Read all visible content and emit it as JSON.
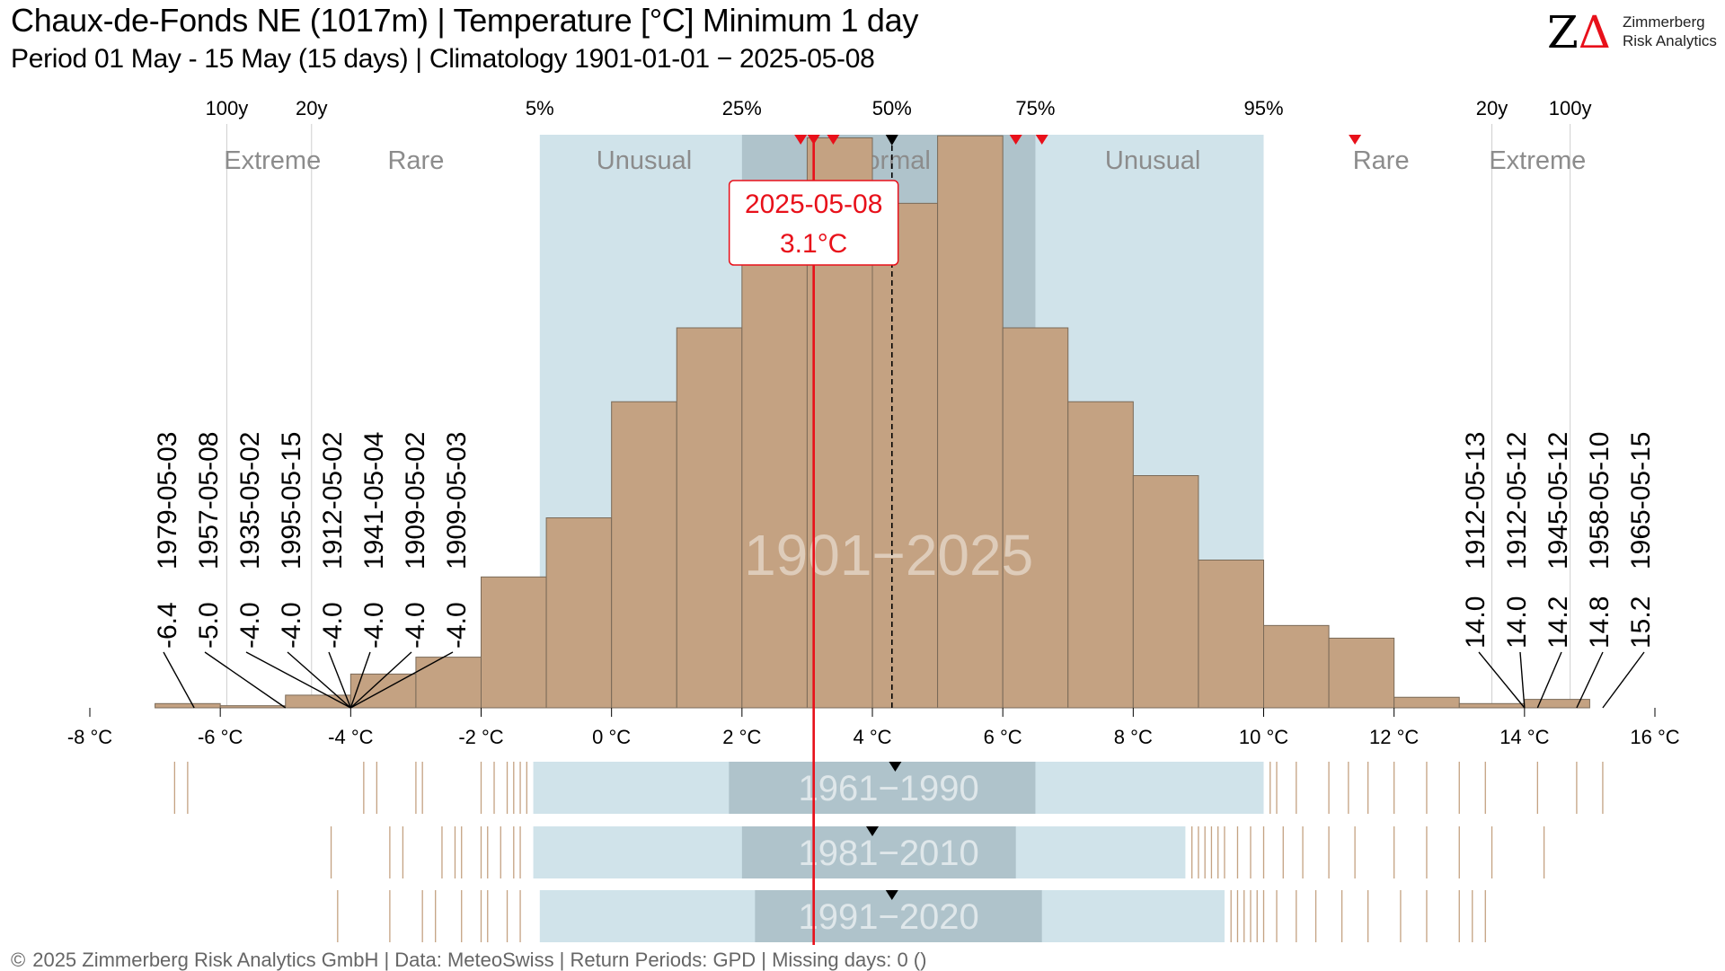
{
  "header": {
    "title": "Chaux-de-Fonds  NE (1017m) | Temperature [°C] Minimum 1 day",
    "subtitle": "Period 01 May - 15 May (15 days) | Climatology 1901-01-01 − 2025-05-08"
  },
  "logo": {
    "mark": "Z",
    "delta": "Δ",
    "line1": "Zimmerberg",
    "line2": "Risk Analytics"
  },
  "footer": {
    "copyright": "©",
    "text": "2025 Zimmerberg Risk Analytics GmbH | Data: MeteoSwiss | Return Periods: GPD | Missing days: 0 ()"
  },
  "colors": {
    "bars": "#c4a282",
    "bar_edge": "#7a6a58",
    "band_unusual": "#d0e3ea",
    "band_normal": "#afc3cb",
    "current": "#e8101a",
    "median": "#000000",
    "rug": "#c4a282"
  },
  "chart_data": {
    "type": "bar",
    "xlabel": "",
    "ylabel": "",
    "xlim": [
      -8,
      16
    ],
    "x_ticks": [
      -8,
      -6,
      -4,
      -2,
      0,
      2,
      4,
      6,
      8,
      10,
      12,
      14,
      16
    ],
    "x_tick_labels": [
      "-8 °C",
      "-6 °C",
      "-4 °C",
      "-2 °C",
      "0 °C",
      "2 °C",
      "4 °C",
      "6 °C",
      "8 °C",
      "10 °C",
      "12 °C",
      "14 °C",
      "16 °C"
    ],
    "bin_edges": [
      -7,
      -6,
      -5,
      -4,
      -3,
      -2,
      -1,
      0,
      1,
      2,
      3,
      4,
      5,
      6,
      7,
      8,
      9,
      10,
      11,
      12,
      13,
      14,
      15
    ],
    "counts": [
      2,
      1,
      6,
      16,
      24,
      62,
      90,
      145,
      180,
      227,
      270,
      239,
      271,
      180,
      145,
      110,
      70,
      39,
      33,
      5,
      2,
      4
    ],
    "percentiles": [
      {
        "label": "5%",
        "value": -1.1
      },
      {
        "label": "25%",
        "value": 2.0
      },
      {
        "label": "50%",
        "value": 4.3
      },
      {
        "label": "75%",
        "value": 6.5
      },
      {
        "label": "95%",
        "value": 10.0
      }
    ],
    "return_periods": [
      {
        "label": "100y",
        "value": -5.9
      },
      {
        "label": "20y",
        "value": -4.6
      },
      {
        "label": "20y",
        "value": 13.5
      },
      {
        "label": "100y",
        "value": 14.7
      }
    ],
    "zones": [
      {
        "label": "Extreme",
        "value": -5.2
      },
      {
        "label": "Rare",
        "value": -3.0
      },
      {
        "label": "Unusual",
        "value": 0.5
      },
      {
        "label": "Normal",
        "value": 4.25
      },
      {
        "label": "Unusual",
        "value": 8.3
      },
      {
        "label": "Rare",
        "value": 11.8
      },
      {
        "label": "Extreme",
        "value": 14.2
      }
    ],
    "current": {
      "date": "2025-05-08",
      "value": 3.1,
      "label": "3.1°C"
    },
    "recent_markers": [
      2.9,
      3.1,
      3.4,
      6.2,
      6.6,
      11.4
    ],
    "median": 4.3,
    "period_label": "1901−2025",
    "lowest": [
      {
        "date": "1979-05-03",
        "value": -6.4,
        "label": "-6.4"
      },
      {
        "date": "1957-05-08",
        "value": -5.0,
        "label": "-5.0"
      },
      {
        "date": "1935-05-02",
        "value": -4.0,
        "label": "-4.0"
      },
      {
        "date": "1995-05-15",
        "value": -4.0,
        "label": "-4.0"
      },
      {
        "date": "1912-05-02",
        "value": -4.0,
        "label": "-4.0"
      },
      {
        "date": "1941-05-04",
        "value": -4.0,
        "label": "-4.0"
      },
      {
        "date": "1909-05-02",
        "value": -4.0,
        "label": "-4.0"
      },
      {
        "date": "1909-05-03",
        "value": -4.0,
        "label": "-4.0"
      }
    ],
    "highest": [
      {
        "date": "1912-05-13",
        "value": 14.0,
        "label": "14.0"
      },
      {
        "date": "1912-05-12",
        "value": 14.0,
        "label": "14.0"
      },
      {
        "date": "1945-05-12",
        "value": 14.2,
        "label": "14.2"
      },
      {
        "date": "1958-05-10",
        "value": 14.8,
        "label": "14.8"
      },
      {
        "date": "1965-05-15",
        "value": 15.2,
        "label": "15.2"
      }
    ],
    "climatologies": [
      {
        "label": "1961−1990",
        "p5": -1.2,
        "p25": 1.8,
        "median": 4.35,
        "p75": 6.5,
        "p95": 10.0,
        "rug": [
          -6.7,
          -6.5,
          -3.8,
          -3.6,
          -3.0,
          -2.9,
          -2.0,
          -1.8,
          -1.6,
          -1.5,
          -1.4,
          -1.3,
          10.1,
          10.2,
          10.5,
          11.0,
          11.3,
          11.6,
          12.0,
          12.5,
          13.0,
          13.4,
          14.2,
          14.8,
          15.2
        ]
      },
      {
        "label": "1981−2010",
        "p5": -1.2,
        "p25": 2.0,
        "median": 4.0,
        "p75": 6.2,
        "p95": 8.8,
        "rug": [
          -4.3,
          -3.4,
          -3.2,
          -2.6,
          -2.4,
          -2.3,
          -2.0,
          -1.9,
          -1.7,
          -1.5,
          -1.4,
          8.9,
          9.0,
          9.1,
          9.2,
          9.3,
          9.4,
          9.6,
          9.8,
          10.0,
          10.3,
          10.6,
          11.0,
          11.4,
          12.0,
          12.5,
          13.0,
          13.5,
          14.3
        ]
      },
      {
        "label": "1991−2020",
        "p5": -1.1,
        "p25": 2.2,
        "median": 4.3,
        "p75": 6.6,
        "p95": 9.4,
        "rug": [
          -4.2,
          -3.4,
          -2.9,
          -2.7,
          -2.3,
          -2.0,
          -1.9,
          -1.6,
          -1.4,
          9.5,
          9.6,
          9.7,
          9.8,
          9.9,
          10.0,
          10.2,
          10.5,
          10.8,
          11.2,
          11.6,
          12.1,
          12.5,
          13.0,
          13.2,
          13.4
        ]
      }
    ]
  }
}
